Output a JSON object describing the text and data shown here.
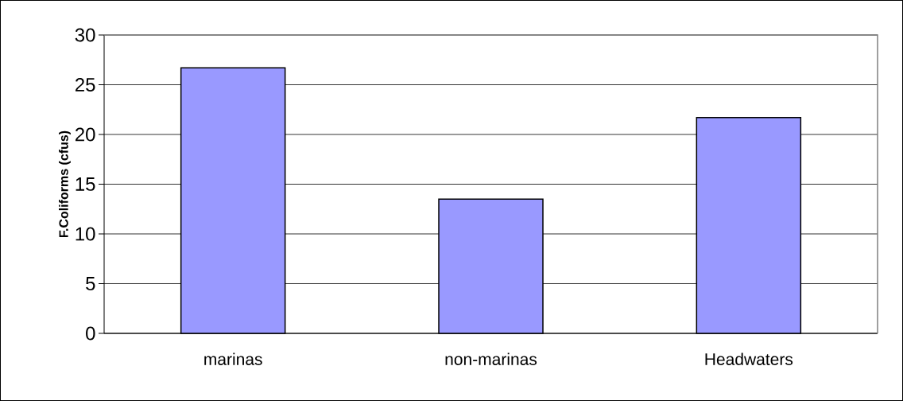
{
  "chart_data": {
    "type": "bar",
    "ylabel": "F.Coliforms (cfus)",
    "categories": [
      "marinas",
      "non-marinas",
      "Headwaters"
    ],
    "values": [
      26.7,
      13.5,
      21.7
    ],
    "color": "#9999ff",
    "ylim": [
      0,
      30
    ],
    "yticks": [
      0,
      5,
      10,
      15,
      20,
      25,
      30
    ],
    "grid": "y"
  }
}
